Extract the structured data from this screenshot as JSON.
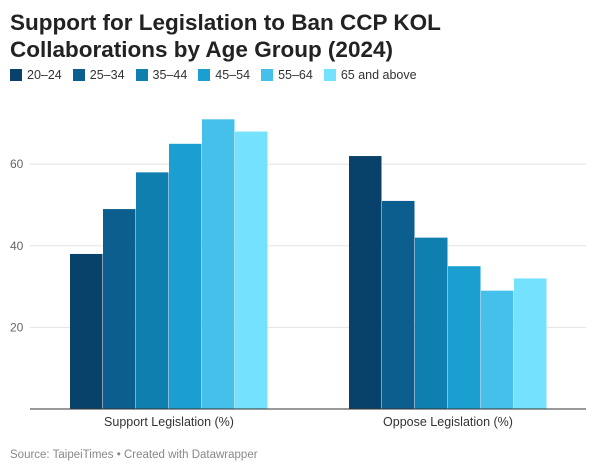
{
  "title": "Support for Legislation to Ban CCP KOL Collaborations by Age Group (2024)",
  "source": "Source: TaipeiTimes • Created with Datawrapper",
  "chart_data": {
    "type": "bar",
    "categories": [
      "Support Legislation (%)",
      "Oppose Legislation (%)"
    ],
    "series": [
      {
        "name": "20–24",
        "color": "#08426b",
        "values": [
          38,
          62
        ]
      },
      {
        "name": "25–34",
        "color": "#0b5e8d",
        "values": [
          49,
          51
        ]
      },
      {
        "name": "35–44",
        "color": "#0e7fae",
        "values": [
          58,
          42
        ]
      },
      {
        "name": "45–54",
        "color": "#1b9fd0",
        "values": [
          65,
          35
        ]
      },
      {
        "name": "55–64",
        "color": "#44c0ea",
        "values": [
          71,
          29
        ]
      },
      {
        "name": "65 and above",
        "color": "#74e1fd",
        "values": [
          68,
          32
        ]
      }
    ],
    "yticks": [
      20,
      40,
      60
    ],
    "ylim": [
      0,
      75
    ],
    "grid": true,
    "legend": "top-left"
  }
}
